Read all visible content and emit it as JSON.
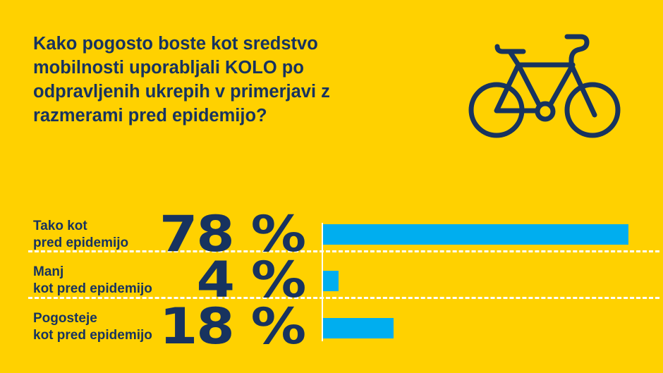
{
  "title": "Kako pogosto boste kot sredstvo mobilnosti uporabljali KOLO po odpravljenih ukrepih v primerjavi z razmerami pred epidemijo?",
  "colors": {
    "background": "#FFD100",
    "text": "#17335F",
    "bar": "#00AEEF",
    "divider": "#FFFFFF"
  },
  "icon": "bicycle-icon",
  "chart_data": {
    "type": "bar",
    "orientation": "horizontal",
    "categories": [
      "Tako kot pred epidemijo",
      "Manj kot pred epidemijo",
      "Pogosteje kot pred epidemijo"
    ],
    "category_lines": [
      [
        "Tako kot",
        "pred epidemijo"
      ],
      [
        "Manj",
        "kot pred epidemijo"
      ],
      [
        "Pogosteje",
        "kot pred epidemijo"
      ]
    ],
    "values": [
      78,
      4,
      18
    ],
    "data_labels": [
      "78 %",
      "4 %",
      "18 %"
    ],
    "unit": "%",
    "xlim": [
      0,
      100
    ],
    "grid": false,
    "legend": "none"
  }
}
